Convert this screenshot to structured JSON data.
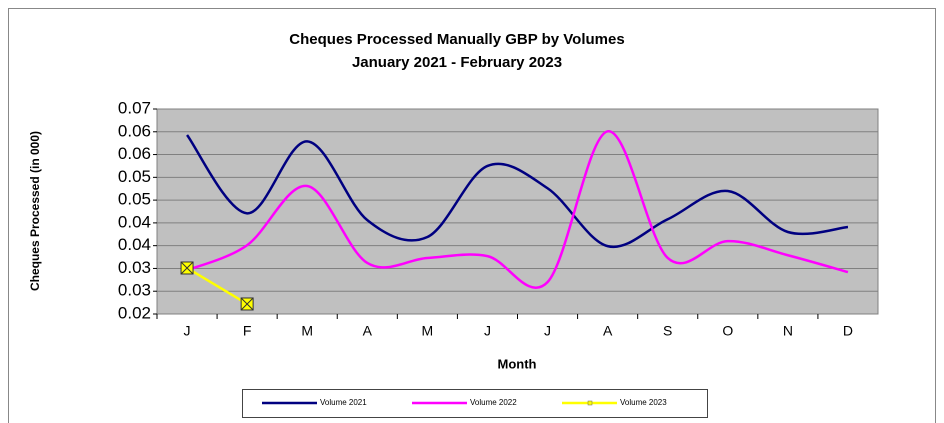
{
  "chart_data": {
    "type": "line",
    "title": "Cheques Processed Manually GBP by Volumes",
    "subtitle": "January 2021 - February 2023",
    "x_label": "Month",
    "y_label": "Cheques Processed (in 000)",
    "categories": [
      "J",
      "F",
      "M",
      "A",
      "M",
      "J",
      "J",
      "A",
      "S",
      "O",
      "N",
      "D"
    ],
    "series": [
      {
        "name": "Volume 2021",
        "color": "#000080",
        "values": [
          0.0593,
          0.0421,
          0.0579,
          0.0406,
          0.0369,
          0.0525,
          0.0476,
          0.0349,
          0.0408,
          0.047,
          0.038,
          0.0391
        ]
      },
      {
        "name": "Volume 2022",
        "color": "#ff00ff",
        "values": [
          0.0296,
          0.0351,
          0.0481,
          0.0312,
          0.0323,
          0.0327,
          0.027,
          0.0601,
          0.0323,
          0.036,
          0.0329,
          0.0292
        ]
      },
      {
        "name": "Volume 2023",
        "color": "#ffff00",
        "marker": "x-square",
        "values": [
          0.0301,
          0.0222,
          null,
          null,
          null,
          null,
          null,
          null,
          null,
          null,
          null,
          null
        ]
      }
    ],
    "ylim": [
      0.02,
      0.065
    ],
    "yticks": [
      0.02,
      {
        "value": 0.025,
        "label": "0.03"
      },
      0.03,
      {
        "value": 0.035,
        "label": "0.04"
      },
      0.04,
      {
        "value": 0.045,
        "label": "0.05"
      },
      0.05,
      {
        "value": 0.055,
        "label": "0.06"
      },
      0.06,
      {
        "value": 0.065,
        "label": "0.07"
      }
    ],
    "grid": true,
    "smooth": true,
    "legend": "bottom"
  }
}
